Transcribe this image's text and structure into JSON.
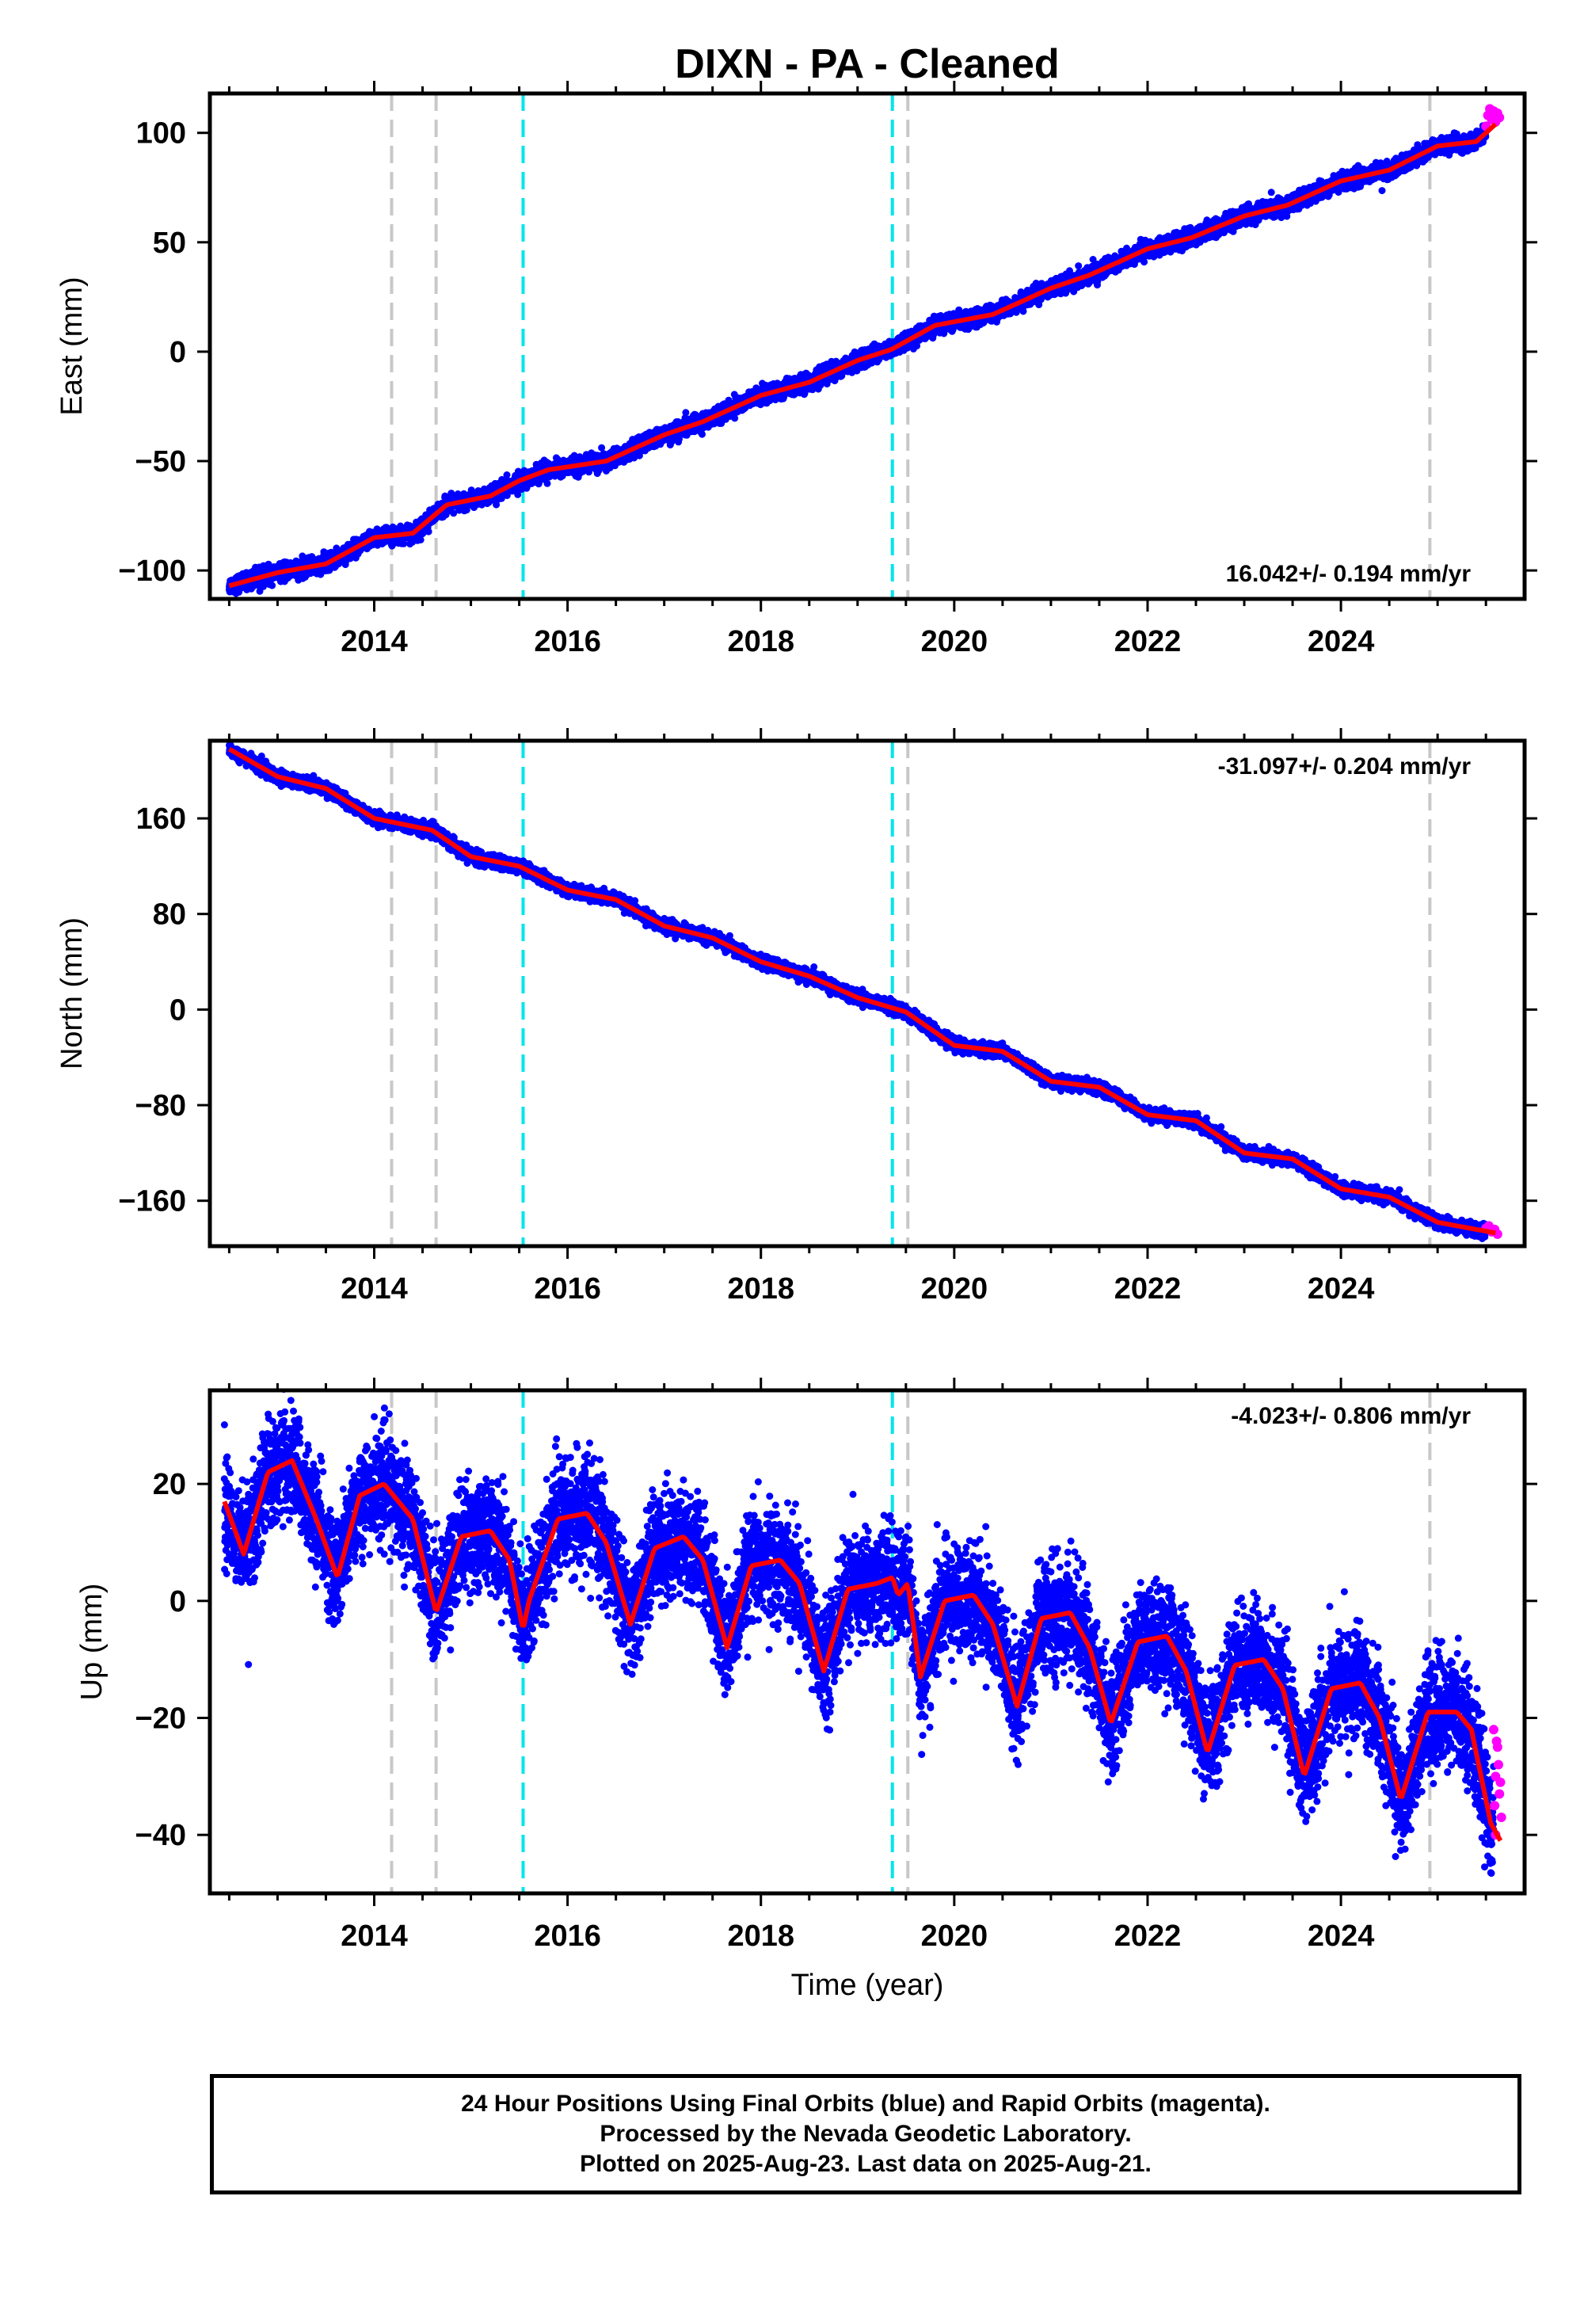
{
  "title": "DIXN  - PA - Cleaned",
  "colors": {
    "final_orbits": "#0000ff",
    "rapid_orbits": "#ff00ff",
    "model": "#ff0000",
    "equipment_change": "#c8c8c8",
    "earthquake": "#00e5ee"
  },
  "events": {
    "equipment_change_years": [
      2014.18,
      2014.64,
      2019.52,
      2024.92
    ],
    "earthquake_years": [
      2015.54,
      2019.36
    ]
  },
  "footer": {
    "line1": "24 Hour Positions Using Final Orbits (blue) and Rapid Orbits (magenta).",
    "line2": "Processed by the Nevada Geodetic Laboratory.",
    "line3": "Plotted on 2025-Aug-23. Last data on 2025-Aug-21."
  },
  "chart_data": [
    {
      "type": "scatter",
      "component": "east",
      "ylabel": "East (mm)",
      "xlabel": "",
      "xlim": [
        2012.3,
        2025.9
      ],
      "ylim": [
        -113,
        118
      ],
      "xticks": [
        2014,
        2016,
        2018,
        2020,
        2022,
        2024
      ],
      "xtick_labels": [
        "2014",
        "2016",
        "2018",
        "2020",
        "2022",
        "2024"
      ],
      "yticks": [
        -100,
        -50,
        0,
        50,
        100
      ],
      "ytick_labels": [
        "−100",
        "−50",
        "0",
        "50",
        "100"
      ],
      "rate_label": "16.042+/- 0.194 mm/yr",
      "rate_position": "bottom-right",
      "scatter_sigma": 1.8,
      "model_x": [
        2012.5,
        2013.0,
        2013.5,
        2014.0,
        2014.4,
        2014.75,
        2015.2,
        2015.5,
        2015.8,
        2016.4,
        2017.0,
        2017.4,
        2018.0,
        2018.5,
        2019.0,
        2019.35,
        2019.8,
        2020.4,
        2021.0,
        2021.4,
        2022.0,
        2022.45,
        2023.0,
        2023.45,
        2024.0,
        2024.5,
        2025.0,
        2025.4,
        2025.6
      ],
      "model_y": [
        -107,
        -101,
        -97,
        -85,
        -83,
        -70,
        -66,
        -59,
        -54,
        -50,
        -38,
        -32,
        -20,
        -14,
        -4,
        1,
        12,
        17,
        29,
        35,
        47,
        52,
        62,
        67,
        78,
        83,
        94,
        96,
        104
      ],
      "rapid_x": [
        2025.5,
        2025.52,
        2025.54,
        2025.56,
        2025.58,
        2025.6,
        2025.62,
        2025.64
      ],
      "rapid_y": [
        103,
        108,
        111,
        106,
        110,
        105,
        109,
        107
      ]
    },
    {
      "type": "scatter",
      "component": "north",
      "ylabel": "North (mm)",
      "xlabel": "",
      "xlim": [
        2012.3,
        2025.9
      ],
      "ylim": [
        -198,
        225
      ],
      "xticks": [
        2014,
        2016,
        2018,
        2020,
        2022,
        2024
      ],
      "xtick_labels": [
        "2014",
        "2016",
        "2018",
        "2020",
        "2022",
        "2024"
      ],
      "yticks": [
        -160,
        -80,
        0,
        80,
        160
      ],
      "ytick_labels": [
        "−160",
        "−80",
        "0",
        "80",
        "160"
      ],
      "rate_label": "-31.097+/- 0.204 mm/yr",
      "rate_position": "top-right",
      "scatter_sigma": 2.5,
      "model_x": [
        2012.5,
        2013.0,
        2013.5,
        2014.0,
        2014.6,
        2015.0,
        2015.5,
        2016.0,
        2016.5,
        2017.0,
        2017.5,
        2018.0,
        2018.5,
        2019.0,
        2019.5,
        2020.0,
        2020.5,
        2021.0,
        2021.5,
        2022.0,
        2022.5,
        2023.0,
        2023.5,
        2024.0,
        2024.5,
        2025.0,
        2025.6
      ],
      "model_y": [
        218,
        195,
        185,
        160,
        150,
        128,
        120,
        100,
        92,
        70,
        60,
        40,
        28,
        10,
        -2,
        -30,
        -35,
        -60,
        -65,
        -88,
        -93,
        -120,
        -125,
        -150,
        -157,
        -178,
        -187
      ],
      "rapid_x": [
        2025.5,
        2025.53,
        2025.56,
        2025.59,
        2025.62
      ],
      "rapid_y": [
        -183,
        -181,
        -186,
        -184,
        -188
      ]
    },
    {
      "type": "scatter",
      "component": "up",
      "ylabel": "Up (mm)",
      "xlabel": "Time (year)",
      "xlim": [
        2012.3,
        2025.9
      ],
      "ylim": [
        -50,
        36
      ],
      "xticks": [
        2014,
        2016,
        2018,
        2020,
        2022,
        2024
      ],
      "xtick_labels": [
        "2014",
        "2016",
        "2018",
        "2020",
        "2022",
        "2024"
      ],
      "yticks": [
        -40,
        -20,
        0,
        20
      ],
      "ytick_labels": [
        "−40",
        "−20",
        "0",
        "20"
      ],
      "rate_label": "-4.023+/- 0.806 mm/yr",
      "rate_position": "top-right",
      "scatter_sigma": 4.5,
      "model_x": [
        2012.45,
        2012.65,
        2012.9,
        2013.15,
        2013.4,
        2013.62,
        2013.85,
        2014.1,
        2014.4,
        2014.64,
        2014.9,
        2015.2,
        2015.4,
        2015.54,
        2015.6,
        2015.9,
        2016.2,
        2016.4,
        2016.65,
        2016.9,
        2017.2,
        2017.4,
        2017.65,
        2017.9,
        2018.2,
        2018.4,
        2018.65,
        2018.9,
        2019.2,
        2019.36,
        2019.42,
        2019.52,
        2019.65,
        2019.9,
        2020.2,
        2020.4,
        2020.65,
        2020.9,
        2021.2,
        2021.4,
        2021.62,
        2021.9,
        2022.2,
        2022.4,
        2022.62,
        2022.9,
        2023.2,
        2023.4,
        2023.62,
        2023.9,
        2024.2,
        2024.4,
        2024.62,
        2024.9,
        2025.2,
        2025.35,
        2025.55,
        2025.65
      ],
      "model_y": [
        17,
        8,
        22,
        24,
        14,
        4,
        18,
        20,
        14,
        -2,
        11,
        12,
        7,
        -5,
        0,
        14,
        15,
        10,
        -4,
        9,
        11,
        7,
        -8,
        6,
        7,
        3,
        -12,
        2,
        3,
        4,
        1,
        3,
        -13,
        0,
        1,
        -4,
        -18,
        -3,
        -2,
        -8,
        -21,
        -7,
        -6,
        -12,
        -26,
        -11,
        -10,
        -15,
        -30,
        -15,
        -14,
        -20,
        -34,
        -19,
        -19,
        -22,
        -38,
        -41
      ],
      "rapid_x": [
        2025.58,
        2025.6,
        2025.62,
        2025.64,
        2025.66,
        2025.6,
        2025.63,
        2025.59,
        2025.65,
        2025.61
      ],
      "rapid_y": [
        -22,
        -30,
        -25,
        -33,
        -37,
        -40,
        -28,
        -35,
        -31,
        -24
      ]
    }
  ]
}
